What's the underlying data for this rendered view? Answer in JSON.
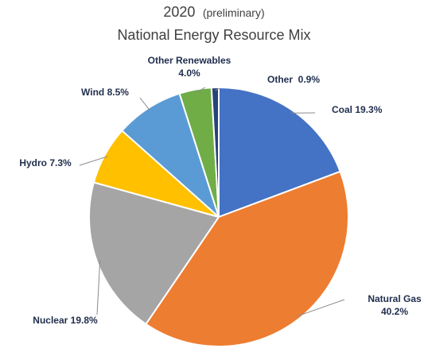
{
  "chart_data": {
    "type": "pie",
    "title": "National Energy Resource Mix",
    "title_year": "2020",
    "title_note": "(preliminary)",
    "slices": [
      {
        "key": "coal",
        "label": "Coal",
        "value": 19.3,
        "value_text": "19.3%",
        "color": "#4472C4"
      },
      {
        "key": "natural-gas",
        "label": "Natural Gas",
        "value": 40.2,
        "value_text": "40.2%",
        "color": "#ED7D31"
      },
      {
        "key": "nuclear",
        "label": "Nuclear",
        "value": 19.8,
        "value_text": "19.8%",
        "color": "#A5A5A5"
      },
      {
        "key": "hydro",
        "label": "Hydro",
        "value": 7.3,
        "value_text": "7.3%",
        "color": "#FFC000"
      },
      {
        "key": "wind",
        "label": "Wind",
        "value": 8.5,
        "value_text": "8.5%",
        "color": "#5B9BD5"
      },
      {
        "key": "other-renewables",
        "label": "Other Renewables",
        "value": 4.0,
        "value_text": "4.0%",
        "color": "#70AD47"
      },
      {
        "key": "other",
        "label": "Other",
        "value": 0.9,
        "value_text": "0.9%",
        "color": "#264478"
      }
    ]
  }
}
